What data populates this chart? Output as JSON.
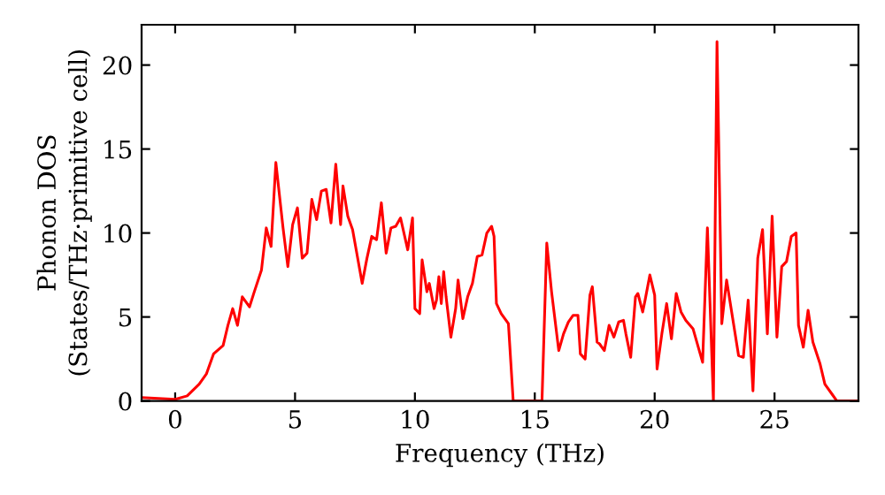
{
  "chart_data": {
    "type": "line",
    "xlabel": "Frequency (THz)",
    "ylabel": "Phonon DOS\n(States/THz·primitive cell)",
    "xlim": [
      -1.4,
      28.5
    ],
    "ylim": [
      0,
      22.4
    ],
    "xticks": [
      0,
      5,
      10,
      15,
      20,
      25
    ],
    "yticks": [
      0,
      5,
      10,
      15,
      20
    ],
    "grid": false,
    "legend": false,
    "marker": "none",
    "line_style": "solid",
    "series": [
      {
        "color": "#ff0000",
        "x": [
          -1.4,
          0,
          0.5,
          1,
          1.3,
          1.6,
          2,
          2.2,
          2.4,
          2.6,
          2.8,
          3.1,
          3.3,
          3.6,
          3.8,
          4.0,
          4.2,
          4.5,
          4.7,
          4.9,
          5.1,
          5.3,
          5.5,
          5.7,
          5.9,
          6.1,
          6.3,
          6.5,
          6.7,
          6.9,
          7.0,
          7.2,
          7.4,
          7.8,
          8.0,
          8.2,
          8.4,
          8.6,
          8.8,
          9.0,
          9.2,
          9.4,
          9.7,
          9.9,
          10.0,
          10.2,
          10.3,
          10.5,
          10.6,
          10.8,
          10.9,
          11.0,
          11.1,
          11.2,
          11.3,
          11.5,
          11.7,
          11.8,
          12.0,
          12.2,
          12.4,
          12.6,
          12.8,
          13.0,
          13.2,
          13.3,
          13.4,
          13.6,
          13.9,
          14.1,
          15.3,
          15.5,
          15.7,
          16.0,
          16.2,
          16.4,
          16.6,
          16.8,
          16.9,
          17.1,
          17.3,
          17.4,
          17.6,
          17.7,
          17.9,
          18.1,
          18.3,
          18.5,
          18.7,
          18.8,
          19.0,
          19.2,
          19.3,
          19.5,
          19.6,
          19.8,
          20.0,
          20.1,
          20.3,
          20.5,
          20.7,
          20.9,
          21.1,
          21.3,
          21.6,
          21.9,
          22.0,
          22.2,
          22.45,
          22.6,
          22.8,
          23.0,
          23.3,
          23.5,
          23.7,
          23.9,
          24.1,
          24.3,
          24.5,
          24.7,
          24.9,
          25.1,
          25.3,
          25.5,
          25.7,
          25.9,
          26.0,
          26.2,
          26.4,
          26.6,
          26.9,
          27.1,
          27.4,
          27.6,
          28.5
        ],
        "values": [
          0.2,
          0.1,
          0.3,
          1.0,
          1.6,
          2.8,
          3.3,
          4.5,
          5.5,
          4.5,
          6.2,
          5.6,
          6.5,
          7.8,
          10.3,
          9.2,
          14.2,
          10.3,
          8.0,
          10.5,
          11.5,
          8.5,
          8.8,
          12.0,
          10.8,
          12.5,
          12.6,
          10.6,
          14.1,
          10.5,
          12.8,
          11.0,
          10.2,
          7.0,
          8.5,
          9.8,
          9.6,
          11.8,
          8.8,
          10.3,
          10.4,
          10.9,
          9.0,
          10.9,
          5.5,
          5.2,
          8.4,
          6.5,
          7.0,
          5.5,
          6.0,
          7.4,
          5.8,
          7.7,
          6.2,
          3.8,
          5.5,
          7.2,
          4.9,
          6.2,
          7.0,
          8.6,
          8.7,
          10.0,
          10.4,
          9.8,
          5.8,
          5.2,
          4.6,
          0,
          0,
          9.4,
          6.5,
          3.0,
          4.0,
          4.7,
          5.1,
          5.1,
          2.8,
          2.5,
          6.3,
          6.8,
          3.5,
          3.4,
          3.0,
          4.5,
          3.8,
          4.7,
          4.8,
          4.0,
          2.6,
          6.2,
          6.4,
          5.3,
          6.0,
          7.5,
          6.3,
          1.9,
          4.0,
          5.8,
          3.7,
          6.4,
          5.3,
          4.8,
          4.3,
          2.8,
          2.3,
          10.3,
          0,
          21.4,
          4.6,
          7.2,
          4.5,
          2.7,
          2.6,
          6.0,
          0.6,
          8.5,
          10.2,
          4.0,
          11.0,
          3.8,
          8.0,
          8.3,
          9.8,
          10.0,
          4.5,
          3.2,
          5.4,
          3.5,
          2.2,
          1.0,
          0.4,
          0,
          0
        ]
      }
    ]
  }
}
